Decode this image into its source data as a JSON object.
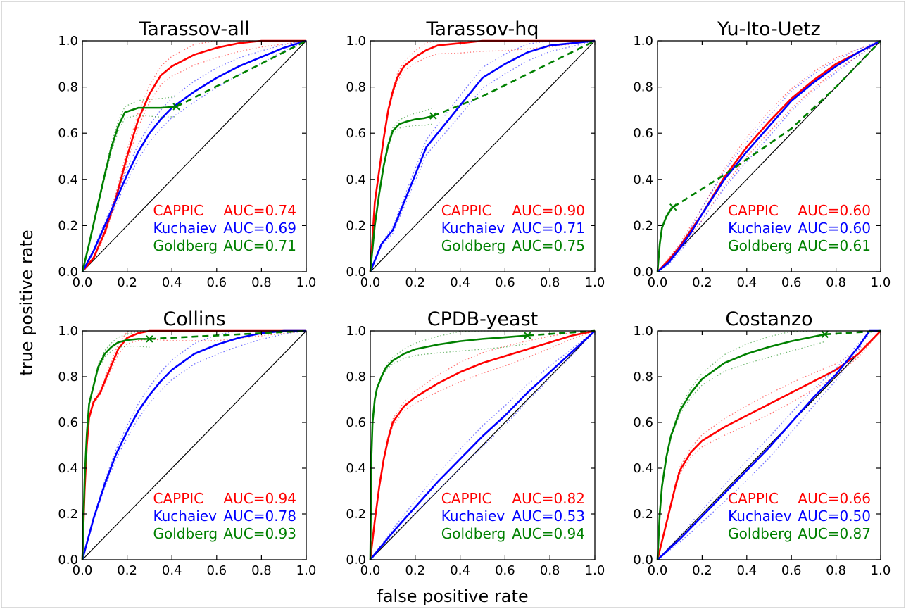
{
  "figure": {
    "xlabel": "false positive rate",
    "ylabel": "true positive rate"
  },
  "colors": {
    "CAPPIC": "#ff0000",
    "Kuchaiev": "#0000ff",
    "Goldberg": "#008000",
    "diagonal": "#000000"
  },
  "chart_data": [
    {
      "type": "line",
      "title": "Tarassov-all",
      "xlim": [
        0,
        1
      ],
      "ylim": [
        0,
        1
      ],
      "xticks": [
        "0.0",
        "0.2",
        "0.4",
        "0.6",
        "0.8",
        "1.0"
      ],
      "yticks": [
        "0.0",
        "0.2",
        "0.4",
        "0.6",
        "0.8",
        "1.0"
      ],
      "legend_position": "lower-right",
      "series": [
        {
          "name": "CAPPIC",
          "auc_label": "AUC=0.74",
          "x": [
            0,
            0.05,
            0.1,
            0.15,
            0.2,
            0.25,
            0.3,
            0.35,
            0.4,
            0.5,
            0.6,
            0.7,
            0.8,
            0.9,
            1
          ],
          "y": [
            0,
            0.06,
            0.17,
            0.32,
            0.5,
            0.66,
            0.77,
            0.85,
            0.89,
            0.94,
            0.97,
            0.99,
            1,
            1,
            1
          ]
        },
        {
          "name": "Kuchaiev",
          "auc_label": "AUC=0.69",
          "x": [
            0,
            0.05,
            0.1,
            0.15,
            0.2,
            0.25,
            0.3,
            0.35,
            0.4,
            0.5,
            0.6,
            0.7,
            0.8,
            0.9,
            1
          ],
          "y": [
            0,
            0.09,
            0.2,
            0.31,
            0.42,
            0.52,
            0.6,
            0.66,
            0.71,
            0.78,
            0.84,
            0.89,
            0.93,
            0.97,
            1
          ]
        },
        {
          "name": "Goldberg",
          "auc_label": "AUC=0.71",
          "x": [
            0,
            0.03,
            0.06,
            0.1,
            0.13,
            0.16,
            0.19,
            0.22,
            0.25,
            0.3,
            0.35,
            0.42
          ],
          "y": [
            0,
            0.12,
            0.25,
            0.42,
            0.54,
            0.63,
            0.69,
            0.7,
            0.71,
            0.71,
            0.71,
            0.715
          ],
          "dashed_x": [
            0.42,
            1
          ],
          "dashed_y": [
            0.715,
            1
          ],
          "marker": [
            0.42,
            0.715
          ]
        }
      ]
    },
    {
      "type": "line",
      "title": "Tarassov-hq",
      "xlim": [
        0,
        1
      ],
      "ylim": [
        0,
        1
      ],
      "xticks": [
        "0.0",
        "0.2",
        "0.4",
        "0.6",
        "0.8",
        "1.0"
      ],
      "yticks": [
        "0.0",
        "0.2",
        "0.4",
        "0.6",
        "0.8",
        "1.0"
      ],
      "legend_position": "lower-right",
      "series": [
        {
          "name": "CAPPIC",
          "auc_label": "AUC=0.90",
          "x": [
            0,
            0.02,
            0.04,
            0.06,
            0.08,
            0.1,
            0.12,
            0.15,
            0.2,
            0.25,
            0.3,
            0.4,
            0.5,
            0.6,
            0.8,
            1
          ],
          "y": [
            0,
            0.3,
            0.44,
            0.58,
            0.7,
            0.78,
            0.84,
            0.89,
            0.93,
            0.96,
            0.98,
            0.99,
            1,
            1,
            1,
            1
          ]
        },
        {
          "name": "Kuchaiev",
          "auc_label": "AUC=0.71",
          "x": [
            0,
            0.05,
            0.1,
            0.15,
            0.2,
            0.25,
            0.3,
            0.35,
            0.4,
            0.5,
            0.6,
            0.7,
            0.8,
            0.9,
            1
          ],
          "y": [
            0,
            0.12,
            0.18,
            0.3,
            0.42,
            0.54,
            0.6,
            0.66,
            0.72,
            0.84,
            0.9,
            0.95,
            0.98,
            0.99,
            1
          ]
        },
        {
          "name": "Goldberg",
          "auc_label": "AUC=0.75",
          "x": [
            0,
            0.02,
            0.04,
            0.06,
            0.08,
            0.1,
            0.13,
            0.16,
            0.2,
            0.24,
            0.28
          ],
          "y": [
            0,
            0.2,
            0.34,
            0.46,
            0.55,
            0.61,
            0.64,
            0.65,
            0.66,
            0.665,
            0.675
          ],
          "dashed_x": [
            0.28,
            0.5,
            0.75,
            1
          ],
          "dashed_y": [
            0.675,
            0.76,
            0.88,
            1
          ],
          "marker": [
            0.28,
            0.675
          ]
        }
      ]
    },
    {
      "type": "line",
      "title": "Yu-Ito-Uetz",
      "xlim": [
        0,
        1
      ],
      "ylim": [
        0,
        1
      ],
      "xticks": [
        "0.0",
        "0.2",
        "0.4",
        "0.6",
        "0.8",
        "1.0"
      ],
      "yticks": [
        "0.0",
        "0.2",
        "0.4",
        "0.6",
        "0.8",
        "1.0"
      ],
      "legend_position": "lower-right",
      "series": [
        {
          "name": "CAPPIC",
          "auc_label": "AUC=0.60",
          "x": [
            0,
            0.05,
            0.1,
            0.15,
            0.2,
            0.3,
            0.4,
            0.5,
            0.6,
            0.7,
            0.8,
            0.9,
            1
          ],
          "y": [
            0,
            0.05,
            0.11,
            0.18,
            0.25,
            0.41,
            0.54,
            0.65,
            0.75,
            0.83,
            0.9,
            0.95,
            1
          ]
        },
        {
          "name": "Kuchaiev",
          "auc_label": "AUC=0.60",
          "x": [
            0,
            0.05,
            0.1,
            0.15,
            0.2,
            0.3,
            0.4,
            0.5,
            0.6,
            0.7,
            0.8,
            0.9,
            1
          ],
          "y": [
            0,
            0.04,
            0.1,
            0.17,
            0.25,
            0.4,
            0.52,
            0.63,
            0.74,
            0.82,
            0.89,
            0.95,
            1
          ]
        },
        {
          "name": "Goldberg",
          "auc_label": "AUC=0.61",
          "x": [
            0,
            0.01,
            0.02,
            0.04,
            0.06,
            0.07
          ],
          "y": [
            0,
            0.12,
            0.19,
            0.24,
            0.27,
            0.28
          ],
          "dashed_x": [
            0.07,
            0.3,
            0.6,
            0.8,
            1
          ],
          "dashed_y": [
            0.28,
            0.42,
            0.62,
            0.8,
            1
          ],
          "marker": [
            0.07,
            0.28
          ]
        }
      ]
    },
    {
      "type": "line",
      "title": "Collins",
      "xlim": [
        0,
        1
      ],
      "ylim": [
        0,
        1
      ],
      "xticks": [
        "0.0",
        "0.2",
        "0.4",
        "0.6",
        "0.8",
        "1.0"
      ],
      "yticks": [
        "0.0",
        "0.2",
        "0.4",
        "0.6",
        "0.8",
        "1.0"
      ],
      "legend_position": "lower-right",
      "series": [
        {
          "name": "CAPPIC",
          "auc_label": "AUC=0.94",
          "x": [
            0,
            0.01,
            0.02,
            0.03,
            0.05,
            0.08,
            0.1,
            0.13,
            0.16,
            0.2,
            0.25,
            0.3,
            0.4,
            0.6,
            1
          ],
          "y": [
            0,
            0.3,
            0.5,
            0.62,
            0.69,
            0.73,
            0.78,
            0.85,
            0.92,
            0.97,
            0.99,
            1,
            1,
            1,
            1
          ]
        },
        {
          "name": "Kuchaiev",
          "auc_label": "AUC=0.78",
          "x": [
            0,
            0.05,
            0.1,
            0.15,
            0.2,
            0.25,
            0.3,
            0.35,
            0.4,
            0.5,
            0.6,
            0.7,
            0.8,
            0.9,
            1
          ],
          "y": [
            0,
            0.18,
            0.33,
            0.46,
            0.56,
            0.65,
            0.72,
            0.78,
            0.83,
            0.9,
            0.94,
            0.97,
            0.99,
            1,
            1
          ]
        },
        {
          "name": "Goldberg",
          "auc_label": "AUC=0.93",
          "x": [
            0,
            0.01,
            0.02,
            0.03,
            0.05,
            0.07,
            0.1,
            0.13,
            0.16,
            0.2,
            0.25,
            0.3
          ],
          "y": [
            0,
            0.35,
            0.55,
            0.68,
            0.76,
            0.84,
            0.9,
            0.93,
            0.95,
            0.96,
            0.965,
            0.965
          ],
          "dashed_x": [
            0.3,
            1
          ],
          "dashed_y": [
            0.965,
            1
          ],
          "marker": [
            0.3,
            0.965
          ]
        }
      ]
    },
    {
      "type": "line",
      "title": "CPDB-yeast",
      "xlim": [
        0,
        1
      ],
      "ylim": [
        0,
        1
      ],
      "xticks": [
        "0.0",
        "0.2",
        "0.4",
        "0.6",
        "0.8",
        "1.0"
      ],
      "yticks": [
        "0.0",
        "0.2",
        "0.4",
        "0.6",
        "0.8",
        "1.0"
      ],
      "legend_position": "lower-right",
      "series": [
        {
          "name": "CAPPIC",
          "auc_label": "AUC=0.82",
          "x": [
            0,
            0.02,
            0.04,
            0.06,
            0.08,
            0.1,
            0.15,
            0.2,
            0.3,
            0.4,
            0.5,
            0.6,
            0.7,
            0.8,
            0.9,
            1
          ],
          "y": [
            0,
            0.17,
            0.32,
            0.44,
            0.53,
            0.6,
            0.67,
            0.71,
            0.77,
            0.82,
            0.86,
            0.89,
            0.92,
            0.95,
            0.98,
            1
          ]
        },
        {
          "name": "Kuchaiev",
          "auc_label": "AUC=0.53",
          "x": [
            0,
            0.1,
            0.2,
            0.3,
            0.4,
            0.5,
            0.6,
            0.7,
            0.8,
            0.9,
            1
          ],
          "y": [
            0,
            0.12,
            0.23,
            0.34,
            0.44,
            0.54,
            0.63,
            0.73,
            0.82,
            0.91,
            1
          ]
        },
        {
          "name": "Goldberg",
          "auc_label": "AUC=0.94",
          "x": [
            0,
            0.005,
            0.01,
            0.02,
            0.03,
            0.05,
            0.07,
            0.1,
            0.15,
            0.2,
            0.3,
            0.4,
            0.5,
            0.6,
            0.7
          ],
          "y": [
            0,
            0.45,
            0.6,
            0.7,
            0.75,
            0.8,
            0.84,
            0.87,
            0.9,
            0.92,
            0.94,
            0.955,
            0.965,
            0.972,
            0.98
          ],
          "dashed_x": [
            0.7,
            1
          ],
          "dashed_y": [
            0.98,
            1
          ],
          "marker": [
            0.7,
            0.98
          ]
        }
      ]
    },
    {
      "type": "line",
      "title": "Costanzo",
      "xlim": [
        0,
        1
      ],
      "ylim": [
        0,
        1
      ],
      "xticks": [
        "0.0",
        "0.2",
        "0.4",
        "0.6",
        "0.8",
        "1.0"
      ],
      "yticks": [
        "0.0",
        "0.2",
        "0.4",
        "0.6",
        "0.8",
        "1.0"
      ],
      "legend_position": "lower-right",
      "series": [
        {
          "name": "CAPPIC",
          "auc_label": "AUC=0.66",
          "x": [
            0,
            0.02,
            0.05,
            0.08,
            0.1,
            0.15,
            0.2,
            0.3,
            0.4,
            0.5,
            0.6,
            0.7,
            0.8,
            0.9,
            1
          ],
          "y": [
            0,
            0.08,
            0.2,
            0.32,
            0.39,
            0.47,
            0.52,
            0.58,
            0.63,
            0.68,
            0.73,
            0.78,
            0.83,
            0.9,
            1
          ]
        },
        {
          "name": "Kuchaiev",
          "auc_label": "AUC=0.50",
          "x": [
            0,
            0.1,
            0.2,
            0.3,
            0.4,
            0.5,
            0.6,
            0.7,
            0.8,
            0.9,
            0.95,
            1
          ],
          "y": [
            0,
            0.09,
            0.19,
            0.29,
            0.39,
            0.49,
            0.6,
            0.71,
            0.81,
            0.93,
            1,
            1
          ]
        },
        {
          "name": "Goldberg",
          "auc_label": "AUC=0.87",
          "x": [
            0,
            0.01,
            0.02,
            0.04,
            0.06,
            0.1,
            0.15,
            0.2,
            0.3,
            0.4,
            0.5,
            0.6,
            0.7,
            0.75
          ],
          "y": [
            0,
            0.2,
            0.32,
            0.45,
            0.54,
            0.65,
            0.73,
            0.79,
            0.86,
            0.9,
            0.93,
            0.955,
            0.975,
            0.985
          ],
          "dashed_x": [
            0.75,
            1
          ],
          "dashed_y": [
            0.985,
            1
          ],
          "marker": [
            0.75,
            0.985
          ]
        }
      ]
    }
  ]
}
